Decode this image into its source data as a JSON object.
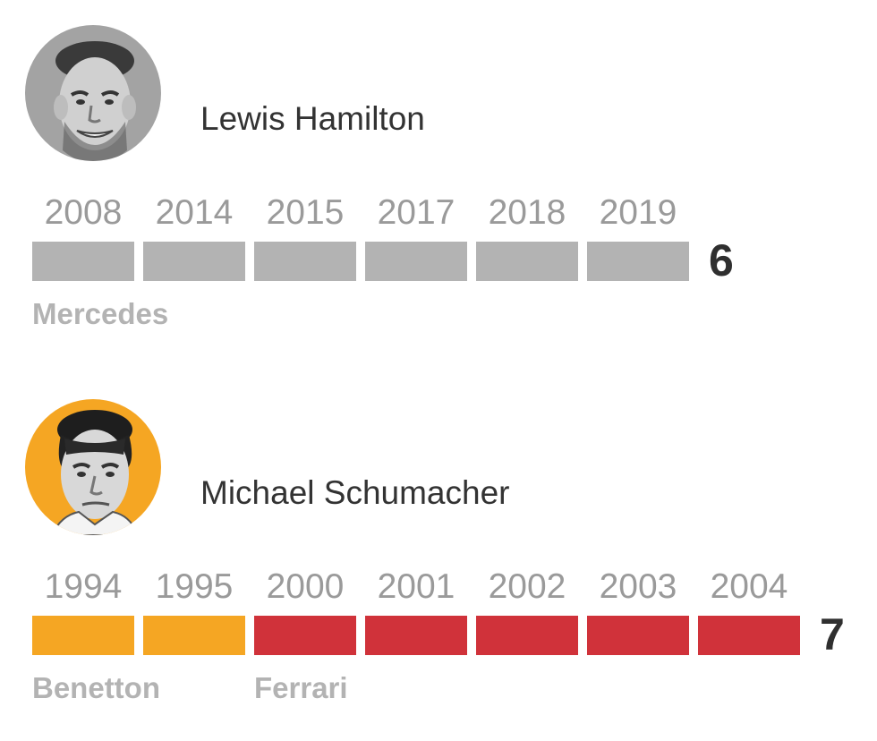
{
  "chart_data": [
    {
      "type": "bar",
      "driver": "Lewis Hamilton",
      "total": "6",
      "categories": [
        "2008",
        "2014",
        "2015",
        "2017",
        "2018",
        "2019"
      ],
      "values": [
        1,
        1,
        1,
        1,
        1,
        1
      ],
      "teams": [
        {
          "name": "Mercedes",
          "start_index": 0,
          "count": 6,
          "color": "#b3b3b3"
        }
      ],
      "avatar_bg": "#a3a3a3"
    },
    {
      "type": "bar",
      "driver": "Michael Schumacher",
      "total": "7",
      "categories": [
        "1994",
        "1995",
        "2000",
        "2001",
        "2002",
        "2003",
        "2004"
      ],
      "values": [
        1,
        1,
        1,
        1,
        1,
        1,
        1
      ],
      "teams": [
        {
          "name": "Benetton",
          "start_index": 0,
          "count": 2,
          "color": "#f5a623"
        },
        {
          "name": "Ferrari",
          "start_index": 2,
          "count": 5,
          "color": "#d0323a"
        }
      ],
      "avatar_bg": "#f5a623"
    }
  ]
}
